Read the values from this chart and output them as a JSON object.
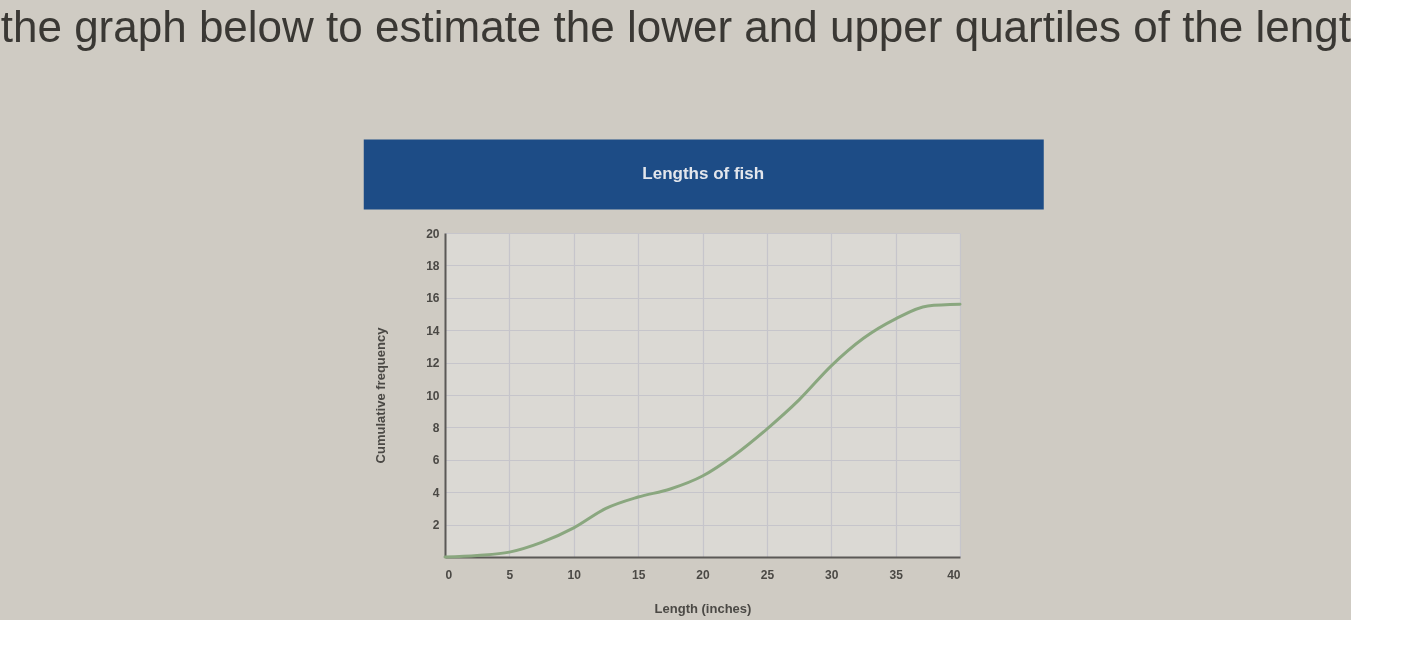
{
  "chart_data": {
    "type": "line",
    "title": "Lengths of fish",
    "xlabel": "Length (inches)",
    "ylabel": "Cumulative frequency",
    "annotations": [
      "the graph below to estimate the lower and upper quartiles of the lengt"
    ],
    "x": [
      0,
      2.5,
      5,
      7.5,
      10,
      12.5,
      15,
      17.5,
      20,
      22.5,
      25,
      27.5,
      30,
      32.5,
      35,
      37.5,
      40
    ],
    "series": [
      {
        "color": "#8aa77f",
        "values": [
          0,
          0.1,
          0.3,
          0.9,
          1.8,
          3.0,
          3.7,
          4.2,
          5.0,
          6.3,
          7.9,
          9.7,
          11.8,
          13.5,
          14.7,
          15.5,
          15.6
        ]
      }
    ],
    "xlim": [
      0,
      40
    ],
    "ylim": [
      0,
      20
    ],
    "xticks": [
      0,
      5,
      10,
      15,
      20,
      25,
      30,
      35,
      40
    ],
    "yticks": [
      {
        "value": 0,
        "label": null
      },
      2,
      4,
      6,
      8,
      10,
      12,
      14,
      16,
      18,
      20
    ],
    "grid": true
  }
}
